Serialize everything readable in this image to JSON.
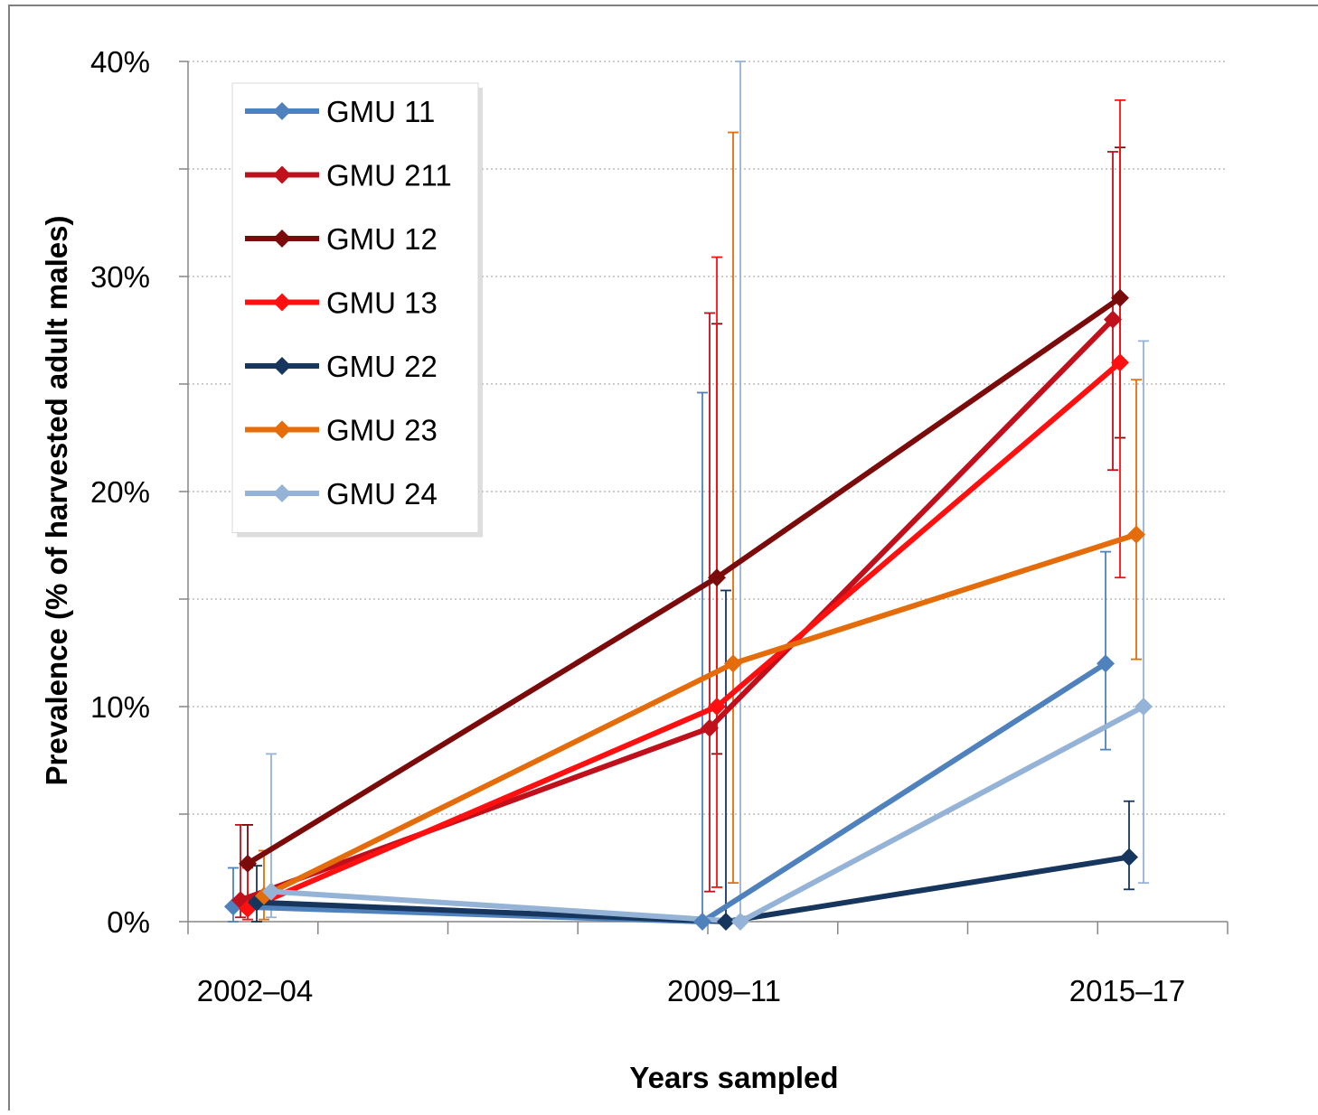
{
  "chart_data": {
    "type": "line",
    "xlabel": "Years sampled",
    "ylabel": "Prevalence (% of harvested adult males)",
    "categories": [
      "2002–04",
      "2009–11",
      "2015–17"
    ],
    "y_tick_labels": [
      "0%",
      "10%",
      "20%",
      "30%",
      "40%"
    ],
    "ylim": [
      0,
      40
    ],
    "grid": "horizontal dotted",
    "legend_position": "top-left",
    "series": [
      {
        "name": "GMU 11",
        "color": "#4f81bd",
        "values": [
          0.7,
          0.0,
          12.0
        ],
        "err_low": [
          0.0,
          0.0,
          8.0
        ],
        "err_high": [
          2.5,
          24.6,
          17.2
        ]
      },
      {
        "name": "GMU 211",
        "color": "#c0101c",
        "values": [
          1.0,
          9.0,
          28.0
        ],
        "err_low": [
          0.2,
          1.4,
          21.0
        ],
        "err_high": [
          4.5,
          28.3,
          35.8
        ]
      },
      {
        "name": "GMU 12",
        "color": "#7b0a0a",
        "values": [
          2.7,
          16.0,
          29.0
        ],
        "err_low": [
          1.0,
          7.8,
          22.5
        ],
        "err_high": [
          4.5,
          27.8,
          36.0
        ]
      },
      {
        "name": "GMU 13",
        "color": "#ff1010",
        "values": [
          0.6,
          10.0,
          26.0
        ],
        "err_low": [
          0.1,
          1.6,
          16.0
        ],
        "err_high": [
          2.5,
          30.9,
          38.2
        ]
      },
      {
        "name": "GMU 22",
        "color": "#17365d",
        "values": [
          0.9,
          0.0,
          3.0
        ],
        "err_low": [
          0.0,
          0.0,
          1.5
        ],
        "err_high": [
          2.6,
          15.4,
          5.6
        ]
      },
      {
        "name": "GMU 23",
        "color": "#e46c0a",
        "values": [
          1.2,
          12.0,
          18.0
        ],
        "err_low": [
          0.1,
          1.8,
          12.2
        ],
        "err_high": [
          3.3,
          36.7,
          25.2
        ]
      },
      {
        "name": "GMU 24",
        "color": "#95b3d7",
        "values": [
          1.4,
          0.0,
          10.0
        ],
        "err_low": [
          0.2,
          0.0,
          1.8
        ],
        "err_high": [
          7.8,
          40.0,
          27.0
        ]
      }
    ]
  }
}
